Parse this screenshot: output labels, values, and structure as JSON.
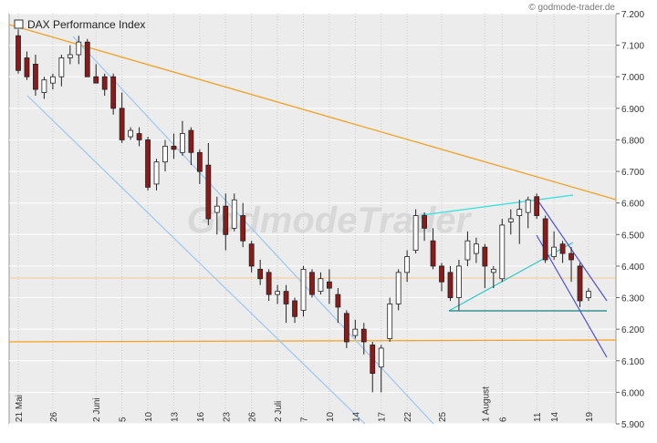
{
  "chart_data": {
    "type": "candlestick",
    "title": "DAX Performance Index",
    "source": "© godmode-trader.de",
    "watermark": "GodmodeTrader",
    "categories": [
      "21 Mai",
      null,
      null,
      null,
      "26",
      null,
      null,
      null,
      null,
      "2 Juni",
      null,
      null,
      "5",
      null,
      null,
      "10",
      null,
      null,
      "13",
      null,
      null,
      "16",
      null,
      null,
      "23",
      null,
      null,
      "26",
      null,
      null,
      "2 Juli",
      null,
      null,
      "7",
      null,
      null,
      "10",
      null,
      null,
      "14",
      null,
      null,
      "17",
      null,
      null,
      "22",
      null,
      null,
      null,
      "25",
      null,
      null,
      null,
      null,
      "1 August",
      null,
      "6",
      null,
      null,
      null,
      "11",
      null,
      "14",
      null,
      null,
      null,
      "19"
    ],
    "open": [
      7130,
      7060,
      7040,
      6950,
      6980,
      7000,
      7060,
      7070,
      7110,
      7000,
      7000,
      7000,
      6900,
      6810,
      6820,
      6800,
      6660,
      6730,
      6780,
      6760,
      6830,
      6760,
      6720,
      6570,
      6590,
      6520,
      6560,
      6470,
      6390,
      6380,
      6310,
      6320,
      6290,
      6260,
      6380,
      6320,
      6350,
      6310,
      6250,
      6180,
      6200,
      6150,
      6080,
      6170,
      6280,
      6380,
      6450,
      6560,
      6480,
      6400,
      6380,
      6300,
      6420,
      6440,
      6460,
      6380,
      6360,
      6540,
      6560,
      6570,
      6620,
      6550,
      6430,
      6470,
      6440,
      6400,
      6300
    ],
    "high": [
      7150,
      7080,
      7070,
      7000,
      7010,
      7070,
      7100,
      7130,
      7120,
      7040,
      7010,
      7010,
      6950,
      6840,
      6840,
      6810,
      6740,
      6800,
      6820,
      6860,
      6840,
      6770,
      6790,
      6620,
      6630,
      6630,
      6600,
      6480,
      6420,
      6390,
      6340,
      6340,
      6300,
      6400,
      6390,
      6380,
      6390,
      6330,
      6260,
      6230,
      6220,
      6160,
      6150,
      6300,
      6390,
      6450,
      6580,
      6570,
      6520,
      6410,
      6400,
      6420,
      6510,
      6490,
      6470,
      6400,
      6550,
      6580,
      6610,
      6620,
      6630,
      6560,
      6510,
      6480,
      6460,
      6410,
      6330
    ],
    "low": [
      7010,
      6990,
      6940,
      6930,
      6960,
      6970,
      7040,
      7040,
      7000,
      6980,
      6940,
      6880,
      6790,
      6800,
      6780,
      6640,
      6640,
      6700,
      6740,
      6750,
      6720,
      6660,
      6530,
      6500,
      6450,
      6510,
      6460,
      6380,
      6340,
      6290,
      6280,
      6220,
      6220,
      6240,
      6300,
      6310,
      6280,
      6220,
      6140,
      6170,
      6120,
      6000,
      6000,
      6160,
      6260,
      6350,
      6440,
      6480,
      6390,
      6320,
      6290,
      6260,
      6400,
      6410,
      6330,
      6330,
      6350,
      6500,
      6470,
      6520,
      6550,
      6410,
      6420,
      6410,
      6350,
      6270,
      6290
    ],
    "close": [
      7020,
      7000,
      6960,
      6990,
      7000,
      7060,
      7070,
      7110,
      7000,
      6980,
      6960,
      6900,
      6800,
      6830,
      6800,
      6650,
      6730,
      6780,
      6770,
      6820,
      6760,
      6700,
      6550,
      6590,
      6500,
      6610,
      6480,
      6400,
      6360,
      6310,
      6320,
      6280,
      6240,
      6390,
      6310,
      6360,
      6330,
      6270,
      6160,
      6200,
      6160,
      6060,
      6140,
      6280,
      6380,
      6430,
      6560,
      6520,
      6400,
      6350,
      6300,
      6400,
      6480,
      6470,
      6400,
      6390,
      6530,
      6550,
      6580,
      6610,
      6560,
      6420,
      6460,
      6440,
      6420,
      6290,
      6320
    ],
    "up_color": "#ffffff",
    "down_color": "#8b1a1a",
    "ylim": [
      5900,
      7200
    ],
    "yticks": [
      {
        "value": 5900,
        "label": "5.900"
      },
      {
        "value": 6000,
        "label": "6.000"
      },
      {
        "value": 6100,
        "label": "6.100"
      },
      {
        "value": 6200,
        "label": "6.200"
      },
      {
        "value": 6300,
        "label": "6.300"
      },
      {
        "value": 6400,
        "label": "6.400"
      },
      {
        "value": 6500,
        "label": "6.500"
      },
      {
        "value": 6600,
        "label": "6.600"
      },
      {
        "value": 6700,
        "label": "6.700"
      },
      {
        "value": 6800,
        "label": "6.800"
      },
      {
        "value": 6900,
        "label": "6.900"
      },
      {
        "value": 7000,
        "label": "7.000"
      },
      {
        "value": 7100,
        "label": "7.100"
      },
      {
        "value": 7200,
        "label": "7.200"
      }
    ],
    "grid": true
  }
}
